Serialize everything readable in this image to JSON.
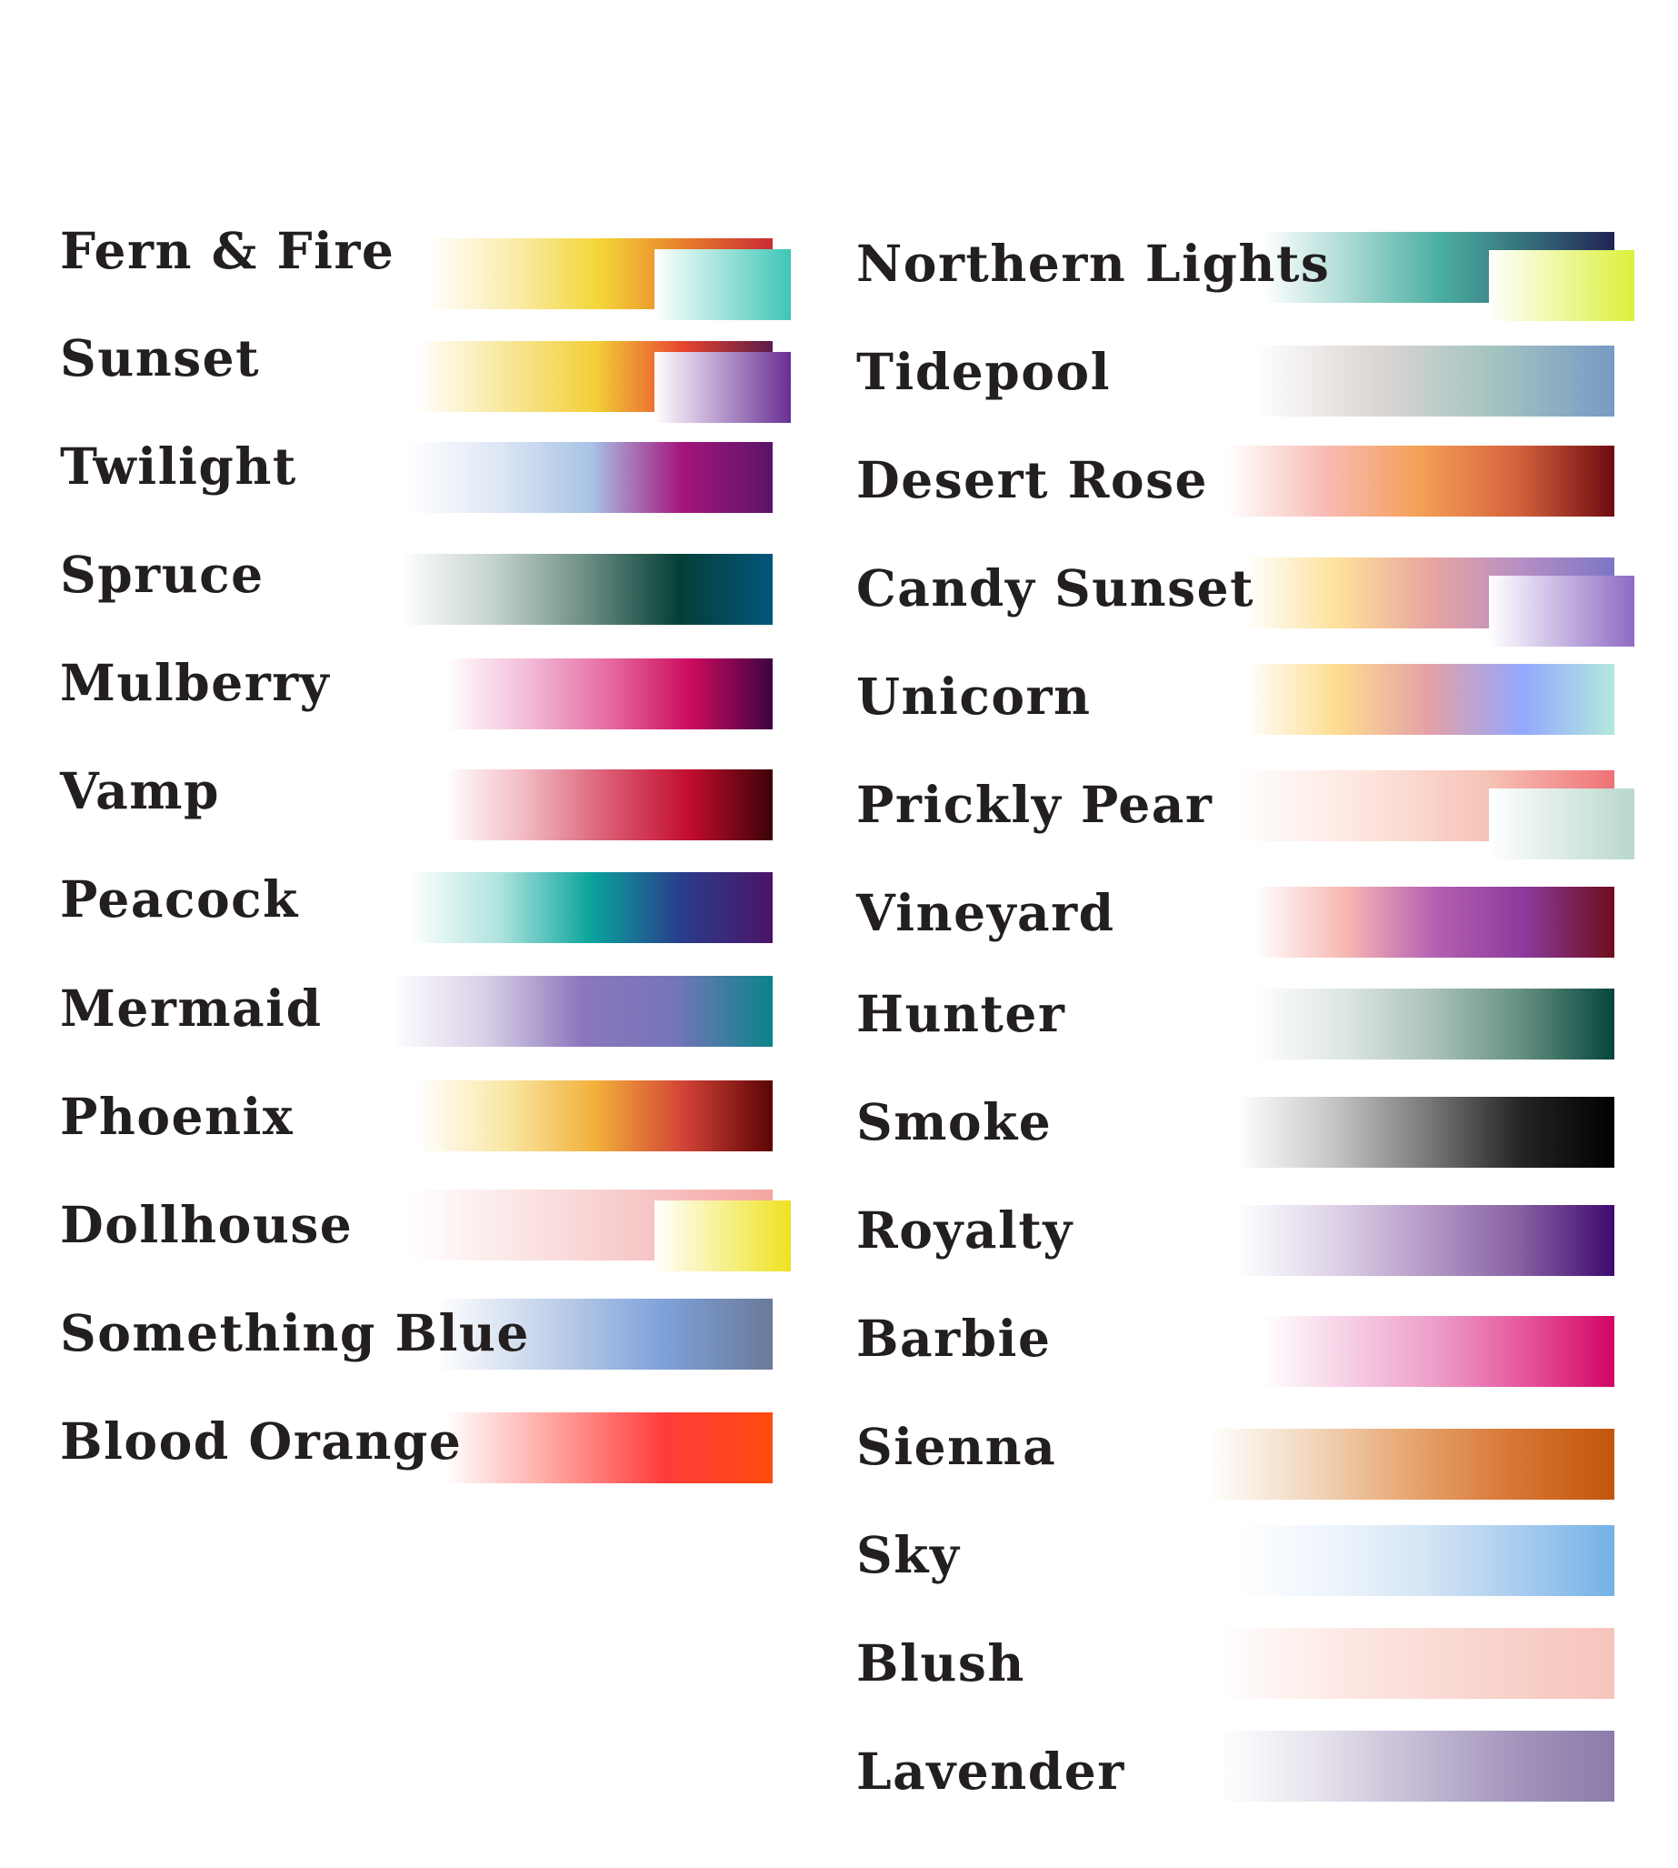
{
  "palettes_left": [
    {
      "name": "Fern & Fire",
      "stops": [
        "#ffffff",
        "#f9ecaa",
        "#f4d537",
        "#e87b2b",
        "#c82c33"
      ],
      "accent": [
        "#ffffff",
        "#3fc6b6"
      ]
    },
    {
      "name": "Sunset",
      "stops": [
        "#ffffff",
        "#f8e79a",
        "#f3cf37",
        "#e6432e",
        "#5a1b4a"
      ],
      "accent": [
        "#ffffff",
        "#6a2e95"
      ]
    },
    {
      "name": "Twilight",
      "stops": [
        "#ffffff",
        "#dde6f5",
        "#a8c3e6",
        "#a5157d",
        "#5a1467"
      ]
    },
    {
      "name": "Spruce",
      "stops": [
        "#ffffff",
        "#c5d3cf",
        "#6b8e84",
        "#053e37",
        "#03577a"
      ]
    },
    {
      "name": "Mulberry",
      "stops": [
        "#ffffff",
        "#f2bcd8",
        "#e66aa0",
        "#cc0b5d",
        "#3d0345"
      ]
    },
    {
      "name": "Vamp",
      "stops": [
        "#ffffff",
        "#f1b7c0",
        "#db5a72",
        "#c10c2c",
        "#3b0208"
      ]
    },
    {
      "name": "Peacock",
      "stops": [
        "#ffffff",
        "#aee3de",
        "#0aa49c",
        "#2a3c8c",
        "#4c1466"
      ]
    },
    {
      "name": "Mermaid",
      "stops": [
        "#ffffff",
        "#d8cfe6",
        "#8c76bd",
        "#7475b8",
        "#0a8389"
      ]
    },
    {
      "name": "Phoenix",
      "stops": [
        "#ffffff",
        "#f9e7a4",
        "#f2b03a",
        "#d24236",
        "#5c0405"
      ]
    },
    {
      "name": "Dollhouse",
      "stops": [
        "#ffffff",
        "#fbe3e3",
        "#f7c4c4",
        "#f5a5a0"
      ],
      "accent": [
        "#ffffff",
        "#efe221"
      ]
    },
    {
      "name": "Something Blue",
      "stops": [
        "#ffffff",
        "#c3d2ea",
        "#7fa2d9",
        "#6a7a98"
      ]
    },
    {
      "name": "Blood Orange",
      "stops": [
        "#ffffff",
        "#ffa39f",
        "#ff3c3c",
        "#ff4b0c"
      ]
    }
  ],
  "palettes_right": [
    {
      "name": "Northern Lights",
      "stops": [
        "#ffffff",
        "#a7d8d2",
        "#4bafa2",
        "#366f7a",
        "#1f2456"
      ],
      "accent": [
        "#ffffff",
        "#dcf03b"
      ]
    },
    {
      "name": "Tidepool",
      "stops": [
        "#ffffff",
        "#ddd7d5",
        "#a3c3c0",
        "#779ac5"
      ]
    },
    {
      "name": "Desert Rose",
      "stops": [
        "#ffffff",
        "#f8bcb6",
        "#f59f56",
        "#d4623c",
        "#6e0a10"
      ]
    },
    {
      "name": "Candy Sunset",
      "stops": [
        "#ffffff",
        "#fde19a",
        "#e8a5a0",
        "#b58ec4",
        "#7c76c5"
      ],
      "accent": [
        "#ffffff",
        "#8e6bc5"
      ]
    },
    {
      "name": "Unicorn",
      "stops": [
        "#ffffff",
        "#fedc8f",
        "#e3a0a8",
        "#93a8fe",
        "#b2e9de"
      ]
    },
    {
      "name": "Prickly Pear",
      "stops": [
        "#ffffff",
        "#fde6df",
        "#f6c2b6",
        "#f07176"
      ],
      "accent": [
        "#ffffff",
        "#b8d7cd"
      ]
    },
    {
      "name": "Vineyard",
      "stops": [
        "#ffffff",
        "#f8b8b2",
        "#b560b1",
        "#8b3a9c",
        "#6e0d1c"
      ]
    },
    {
      "name": "Hunter",
      "stops": [
        "#ffffff",
        "#dee6e2",
        "#a8c1b8",
        "#628d7f",
        "#04463b"
      ]
    },
    {
      "name": "Smoke",
      "stops": [
        "#ffffff",
        "#c7c7c7",
        "#7b7b7b",
        "#252525",
        "#000000"
      ]
    },
    {
      "name": "Royalty",
      "stops": [
        "#ffffff",
        "#ded4e8",
        "#b69ac7",
        "#8660a1",
        "#3e0970"
      ]
    },
    {
      "name": "Barbie",
      "stops": [
        "#ffffff",
        "#f6cde3",
        "#ed9bc7",
        "#e6539b",
        "#d10463"
      ]
    },
    {
      "name": "Sienna",
      "stops": [
        "#ffffff",
        "#f2d7bd",
        "#e7a56f",
        "#d77635",
        "#c25509"
      ]
    },
    {
      "name": "Sky",
      "stops": [
        "#ffffff",
        "#eef5fc",
        "#d4e5f4",
        "#a9ccee",
        "#73b1e6"
      ]
    },
    {
      "name": "Blush",
      "stops": [
        "#ffffff",
        "#fde7e3",
        "#f9d4ce",
        "#f7c4bc"
      ]
    },
    {
      "name": "Lavender",
      "stops": [
        "#ffffff",
        "#e7e3ed",
        "#c4bcd5",
        "#a495bc",
        "#8a7baa"
      ]
    }
  ]
}
